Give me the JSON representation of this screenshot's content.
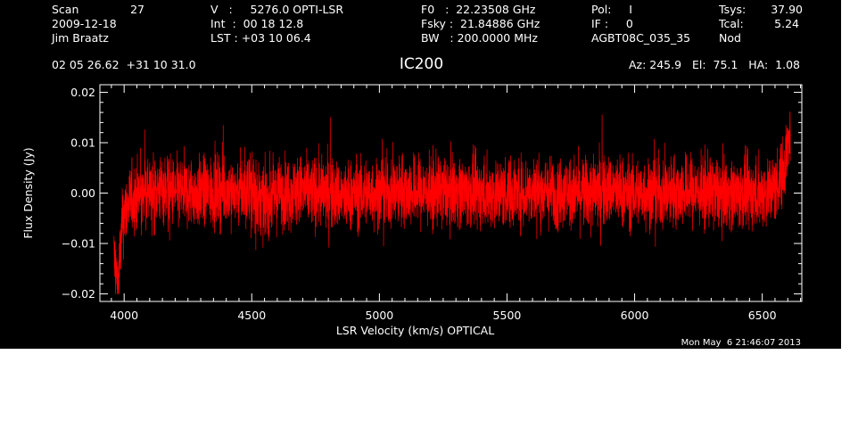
{
  "header": {
    "col1": {
      "scan_label": "Scan",
      "scan_value": "27",
      "date": "2009-12-18",
      "observer": "Jim Braatz"
    },
    "col2": {
      "v": "V   :     5276.0 OPTI-LSR",
      "int": "Int  :  00 18 12.8",
      "lst": "LST : +03 10 06.4"
    },
    "col3": {
      "f0": "F0   :  22.23508 GHz",
      "fsky": "Fsky :  21.84886 GHz",
      "bw": "BW   : 200.0000 MHz"
    },
    "col4": {
      "pol": "Pol:     I",
      "if": "IF :     0",
      "proj": "AGBT08C_035_35"
    },
    "col5": {
      "tsys_label": "Tsys:",
      "tsys_value": "37.90",
      "tcal_label": "Tcal:",
      "tcal_value": "5.24",
      "mode": "Nod"
    },
    "coords": "02 05 26.62  +31 10 31.0",
    "source": "IC200",
    "az_el_ha": "Az: 245.9   El:  75.1   HA:  1.08"
  },
  "timestamp": "Mon May  6 21:46:07 2013",
  "colors": {
    "background": "#000000",
    "axes": "#ffffff",
    "trace": "#ff0000"
  },
  "chart_data": {
    "type": "line",
    "xlabel": "LSR Velocity (km/s) OPTICAL",
    "ylabel": "Flux Density (Jy)",
    "xlim": [
      3905,
      6655
    ],
    "ylim": [
      -0.0215,
      0.0215
    ],
    "xticks": [
      4000,
      4500,
      5000,
      5500,
      6000,
      6500
    ],
    "xtick_labels": [
      "4000",
      "4500",
      "5000",
      "5500",
      "6000",
      "6500"
    ],
    "yticks": [
      -0.02,
      -0.01,
      0.0,
      0.01,
      0.02
    ],
    "ytick_labels": [
      "−0.02",
      "−0.01",
      "0.00",
      "0.01",
      "0.02"
    ],
    "grid": false,
    "series": [
      {
        "description_points": "approximate envelope of the noisy spectrum",
        "x": [
          3960,
          3975,
          3990,
          4000,
          4030,
          4100,
          4150,
          4200,
          4300,
          4400,
          4500,
          4550,
          4600,
          4700,
          4800,
          4870,
          4900,
          5000,
          5100,
          5200,
          5300,
          5400,
          5500,
          5600,
          5700,
          5800,
          5900,
          6000,
          6100,
          6200,
          6300,
          6400,
          6500,
          6550,
          6580,
          6600,
          6610
        ],
        "y": [
          -0.012,
          -0.019,
          -0.008,
          -0.004,
          -0.001,
          0.0,
          0.001,
          0.0,
          0.0,
          0.0005,
          0.0,
          -0.002,
          0.0,
          0.0005,
          0.0,
          -0.001,
          0.0,
          0.0,
          0.0005,
          0.0,
          0.0005,
          0.0,
          0.0,
          0.0005,
          0.0,
          0.0,
          0.0005,
          0.0,
          0.0,
          0.0005,
          0.0,
          0.0,
          0.0,
          0.001,
          0.004,
          0.009,
          0.012
        ],
        "noise_rms": 0.0035
      }
    ]
  }
}
